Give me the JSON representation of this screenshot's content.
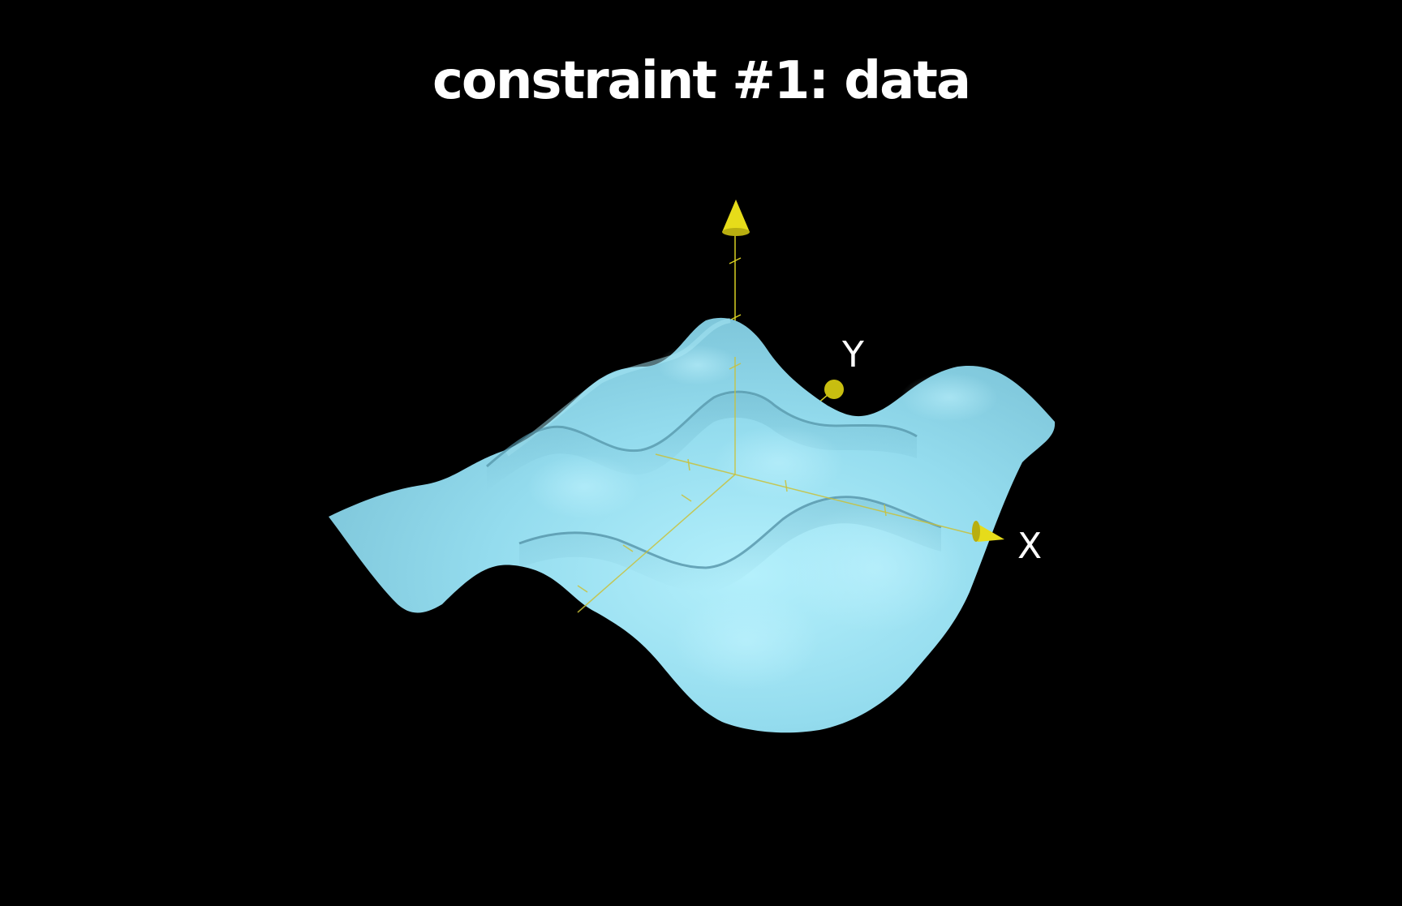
{
  "title": "constraint #1: data",
  "diagram": {
    "axes": {
      "x_label": "X",
      "y_label": "Y"
    },
    "colors": {
      "background": "#000000",
      "surface": "#8ed6e8",
      "surface_highlight": "#b4f0fc",
      "axis": "#d8cf22",
      "label_text": "#ffffff"
    }
  }
}
